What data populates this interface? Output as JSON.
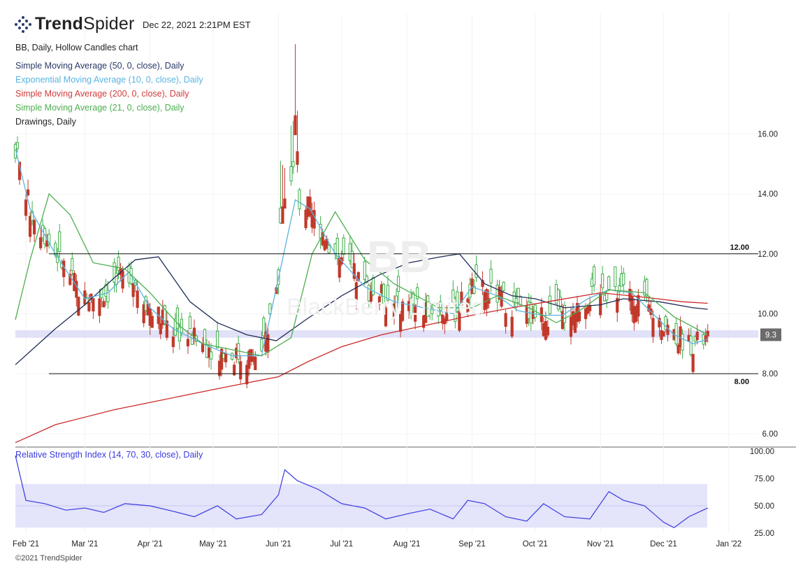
{
  "header": {
    "brand_bold": "Trend",
    "brand_light": "Spider",
    "timestamp": "Dec 22, 2021 2:21PM EST"
  },
  "legend": [
    {
      "text": "BB, Daily, Hollow Candles chart",
      "color": "#222222"
    },
    {
      "text": "Simple Moving Average (50, 0, close), Daily",
      "color": "#2b3a66"
    },
    {
      "text": "Exponential Moving Average (10, 0, close), Daily",
      "color": "#5ab4e0"
    },
    {
      "text": "Simple Moving Average (200, 0, close), Daily",
      "color": "#d23c3c"
    },
    {
      "text": "Simple Moving Average (21, 0, close), Daily",
      "color": "#4caf50"
    },
    {
      "text": "Drawings, Daily",
      "color": "#222222"
    }
  ],
  "watermark": {
    "symbol": "BB",
    "name": "BlackBerry Limited"
  },
  "copyright": "©2021 TrendSpider",
  "rsi_label": "Relative Strength Index (14, 70, 30, close), Daily",
  "colors": {
    "up": "#3fae49",
    "down": "#c0392b",
    "sma50": "#1f2d57",
    "ema10": "#5ab4e0",
    "sma200": "#cc2b2b",
    "sma21": "#4caf50",
    "rsi": "#3a3adf",
    "band": "#e4e4fb",
    "zone": "#dcdcf7"
  },
  "chart_data": [
    {
      "type": "candlestick",
      "symbol": "BB",
      "interval": "Daily",
      "y_ticks": [
        "16.00",
        "14.00",
        "12.00",
        "10.00",
        "8.00",
        "6.00"
      ],
      "y_tick_values": [
        16,
        14,
        12,
        10,
        8,
        6
      ],
      "ylim": [
        5.6,
        20.0
      ],
      "x_ticks": [
        "Feb '21",
        "Mar '21",
        "Apr '21",
        "May '21",
        "Jun '21",
        "Jul '21",
        "Aug '21",
        "Sep '21",
        "Oct '21",
        "Nov '21",
        "Dec '21",
        "Jan '22"
      ],
      "x_tick_dates": [
        "2021-02-01",
        "2021-03-01",
        "2021-04-01",
        "2021-05-01",
        "2021-06-01",
        "2021-07-01",
        "2021-08-01",
        "2021-09-01",
        "2021-10-01",
        "2021-11-01",
        "2021-12-01",
        "2022-01-01"
      ],
      "xlim": [
        "2021-01-27",
        "2022-01-15"
      ],
      "horizontal_lines": [
        {
          "value": 12.0,
          "label": "12.00"
        },
        {
          "value": 8.0,
          "label": "8.00"
        }
      ],
      "zone": {
        "low": 9.2,
        "high": 9.45
      },
      "last_price_label": "9.3",
      "last_price": 9.3,
      "series": [
        {
          "name": "Simple Moving Average (50, 0, close), Daily",
          "x": [
            "2021-01-27",
            "2021-02-15",
            "2021-03-01",
            "2021-03-15",
            "2021-03-25",
            "2021-04-05",
            "2021-04-20",
            "2021-05-03",
            "2021-05-17",
            "2021-05-31",
            "2021-06-14",
            "2021-07-01",
            "2021-07-19",
            "2021-08-02",
            "2021-08-17",
            "2021-08-26",
            "2021-09-07",
            "2021-09-20",
            "2021-10-01",
            "2021-10-15",
            "2021-11-01",
            "2021-11-12",
            "2021-11-29",
            "2021-12-15",
            "2021-12-22"
          ],
          "values": [
            8.3,
            9.5,
            10.3,
            11.2,
            11.8,
            11.9,
            10.4,
            9.7,
            9.3,
            9.1,
            9.8,
            10.6,
            11.3,
            11.7,
            11.9,
            12.0,
            11.0,
            10.6,
            10.5,
            10.2,
            10.3,
            10.5,
            10.4,
            10.2,
            10.15
          ]
        },
        {
          "name": "Exponential Moving Average (10, 0, close), Daily",
          "x": [
            "2021-01-27",
            "2021-02-03",
            "2021-02-15",
            "2021-03-01",
            "2021-03-12",
            "2021-03-22",
            "2021-04-01",
            "2021-04-12",
            "2021-04-26",
            "2021-05-10",
            "2021-05-24",
            "2021-06-02",
            "2021-06-09",
            "2021-06-16",
            "2021-06-28",
            "2021-07-12",
            "2021-07-26",
            "2021-08-09",
            "2021-08-23",
            "2021-09-01",
            "2021-09-13",
            "2021-09-23",
            "2021-10-04",
            "2021-10-14",
            "2021-10-26",
            "2021-11-05",
            "2021-11-16",
            "2021-11-26",
            "2021-12-06",
            "2021-12-15",
            "2021-12-22"
          ],
          "values": [
            15.5,
            13.5,
            12.0,
            10.5,
            10.7,
            11.4,
            10.2,
            9.5,
            9.0,
            8.6,
            8.6,
            11.5,
            13.8,
            13.5,
            12.0,
            10.9,
            10.4,
            10.2,
            10.0,
            10.9,
            10.6,
            10.1,
            9.95,
            9.95,
            10.5,
            10.8,
            10.7,
            10.0,
            9.3,
            9.0,
            9.15
          ]
        },
        {
          "name": "Simple Moving Average (200, 0, close), Daily",
          "x": [
            "2021-01-27",
            "2021-02-15",
            "2021-03-15",
            "2021-04-05",
            "2021-05-03",
            "2021-06-01",
            "2021-06-15",
            "2021-07-01",
            "2021-07-20",
            "2021-08-09",
            "2021-09-01",
            "2021-09-20",
            "2021-10-11",
            "2021-11-01",
            "2021-11-22",
            "2021-12-10",
            "2021-12-22"
          ],
          "values": [
            5.7,
            6.3,
            6.8,
            7.1,
            7.5,
            7.9,
            8.4,
            8.9,
            9.3,
            9.6,
            9.95,
            10.2,
            10.45,
            10.7,
            10.55,
            10.4,
            10.35
          ]
        },
        {
          "name": "Simple Moving Average (21, 0, close), Daily",
          "x": [
            "2021-01-27",
            "2021-02-03",
            "2021-02-12",
            "2021-02-22",
            "2021-03-05",
            "2021-03-20",
            "2021-04-01",
            "2021-04-15",
            "2021-04-26",
            "2021-05-10",
            "2021-05-24",
            "2021-06-07",
            "2021-06-17",
            "2021-06-28",
            "2021-07-12",
            "2021-07-26",
            "2021-08-16",
            "2021-09-01",
            "2021-09-13",
            "2021-09-28",
            "2021-10-11",
            "2021-10-22",
            "2021-11-05",
            "2021-11-22",
            "2021-12-06",
            "2021-12-22"
          ],
          "values": [
            9.8,
            11.8,
            14.0,
            13.3,
            11.7,
            11.5,
            10.7,
            9.6,
            9.0,
            8.8,
            8.6,
            9.2,
            12.0,
            13.4,
            11.8,
            11.0,
            10.2,
            10.2,
            10.6,
            10.2,
            9.7,
            10.1,
            10.8,
            10.7,
            9.9,
            9.3
          ]
        }
      ]
    },
    {
      "type": "line",
      "name": "Relative Strength Index (14, 70, 30, close), Daily",
      "y_ticks": [
        "100.00",
        "75.00",
        "50.00",
        "25.00"
      ],
      "y_tick_values": [
        100,
        75,
        50,
        25
      ],
      "ylim": [
        25,
        100
      ],
      "band": [
        30,
        70
      ],
      "x": [
        "2021-01-27",
        "2021-02-01",
        "2021-02-10",
        "2021-02-20",
        "2021-03-01",
        "2021-03-10",
        "2021-03-20",
        "2021-04-01",
        "2021-04-12",
        "2021-04-22",
        "2021-05-03",
        "2021-05-12",
        "2021-05-24",
        "2021-06-01",
        "2021-06-04",
        "2021-06-10",
        "2021-06-20",
        "2021-07-01",
        "2021-07-12",
        "2021-07-22",
        "2021-08-02",
        "2021-08-12",
        "2021-08-23",
        "2021-08-30",
        "2021-09-07",
        "2021-09-17",
        "2021-09-27",
        "2021-10-05",
        "2021-10-15",
        "2021-10-27",
        "2021-11-05",
        "2021-11-12",
        "2021-11-22",
        "2021-12-01",
        "2021-12-06",
        "2021-12-13",
        "2021-12-22"
      ],
      "values": [
        96,
        55,
        52,
        46,
        48,
        44,
        52,
        50,
        45,
        40,
        50,
        38,
        42,
        60,
        83,
        73,
        65,
        52,
        48,
        38,
        43,
        47,
        38,
        55,
        52,
        40,
        36,
        52,
        40,
        38,
        63,
        55,
        50,
        35,
        30,
        40,
        48
      ]
    }
  ]
}
